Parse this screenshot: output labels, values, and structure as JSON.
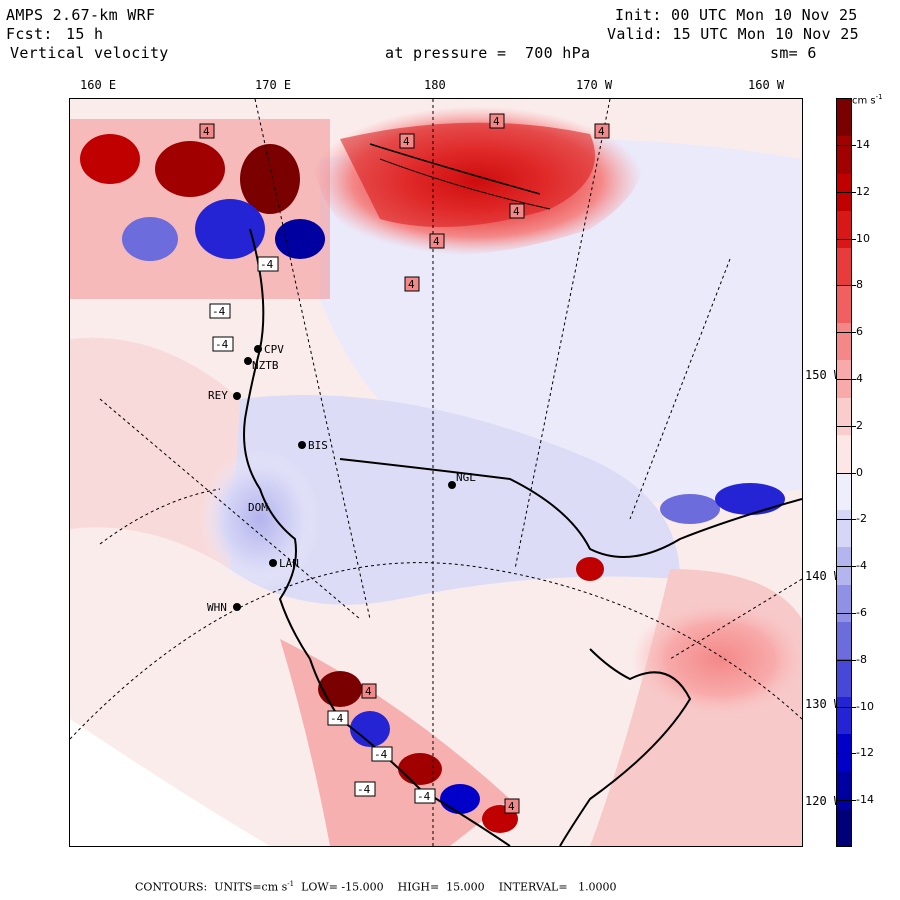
{
  "header": {
    "model": "AMPS 2.67-km WRF",
    "init": "Init: 00 UTC Mon 10 Nov 25",
    "forecast_label": "Fcst:",
    "forecast_hours": "15 h",
    "valid": "Valid: 15 UTC Mon 10 Nov 25",
    "field": "Vertical velocity",
    "level": "at pressure =  700 hPa",
    "smoothing": "sm= 6"
  },
  "longitude_labels": [
    "160 E",
    "170 E",
    "180",
    "170 W",
    "160 W"
  ],
  "latitude_labels": [
    "150 W",
    "140 W",
    "130 W",
    "120 W"
  ],
  "stations": [
    "CPV",
    "NZTB",
    "REY",
    "BIS",
    "NGL",
    "DOM",
    "LAN",
    "WHN"
  ],
  "contour_labels": [
    "4",
    "-4"
  ],
  "colorbar": {
    "unit": "cm s",
    "unit_exp": "-1",
    "ticks": [
      "14",
      "12",
      "10",
      "8",
      "6",
      "4",
      "2",
      "0",
      "-2",
      "-4",
      "-6",
      "-8",
      "-10",
      "-12",
      "-14"
    ],
    "colors": [
      "#7a0000",
      "#a00000",
      "#c00000",
      "#d81818",
      "#e83c3c",
      "#f06060",
      "#f48888",
      "#f8aaaa",
      "#fbcccc",
      "#fde6e6",
      "#eeeefc",
      "#d6d6f6",
      "#b4b4ee",
      "#9090e4",
      "#6c6cdc",
      "#4848d8",
      "#2424d4",
      "#0000c8",
      "#0000a0",
      "#000078"
    ]
  },
  "footer": {
    "contours": "CONTOURS:  UNITS=cm s",
    "units_exp": "-1",
    "low": "LOW= -15.000",
    "high": "HIGH=  15.000",
    "interval": "INTERVAL=   1.0000"
  },
  "chart_data": {
    "type": "heatmap",
    "title": "Vertical velocity at pressure = 700 hPa",
    "units": "cm s-1",
    "range": [
      -15,
      15
    ],
    "interval": 1.0
  }
}
